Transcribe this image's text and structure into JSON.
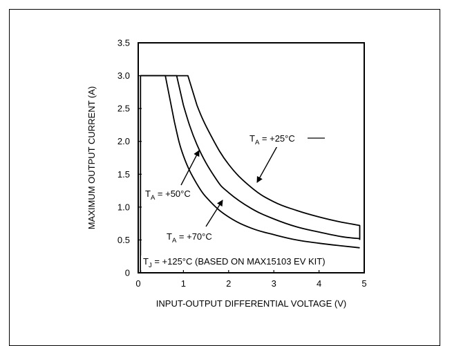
{
  "chart_data": {
    "type": "line",
    "title": "",
    "xlabel": "INPUT-OUTPUT DIFFERENTIAL VOLTAGE (V)",
    "ylabel": "MAXIMUM OUTPUT CURRENT (A)",
    "xlim": [
      0,
      5
    ],
    "ylim": [
      0,
      3.5
    ],
    "x_ticks": [
      "0",
      "1",
      "2",
      "3",
      "4",
      "5"
    ],
    "y_ticks": [
      "0",
      "0.5",
      "1.0",
      "1.5",
      "2.0",
      "2.5",
      "3.0",
      "3.5"
    ],
    "grid": false,
    "series": [
      {
        "name": "TA = +25°C",
        "x": [
          0.05,
          0.05,
          1.1,
          1.3,
          1.6,
          2.0,
          2.5,
          3.0,
          3.5,
          4.0,
          4.5,
          4.9,
          4.9
        ],
        "y": [
          0.0,
          3.0,
          3.0,
          2.55,
          2.1,
          1.65,
          1.3,
          1.08,
          0.95,
          0.85,
          0.77,
          0.72,
          0.5
        ]
      },
      {
        "name": "TA = +50°C",
        "x": [
          0.05,
          0.85,
          1.0,
          1.3,
          1.7,
          2.0,
          2.5,
          3.0,
          3.5,
          4.0,
          4.5,
          4.9
        ],
        "y": [
          3.0,
          3.0,
          2.55,
          1.95,
          1.45,
          1.22,
          0.98,
          0.82,
          0.7,
          0.62,
          0.55,
          0.52
        ]
      },
      {
        "name": "TA = +70°C",
        "x": [
          0.05,
          0.6,
          0.8,
          1.0,
          1.3,
          1.6,
          2.0,
          2.5,
          3.0,
          3.5,
          4.0,
          4.5,
          4.9
        ],
        "y": [
          3.0,
          3.0,
          2.3,
          1.78,
          1.35,
          1.08,
          0.85,
          0.68,
          0.58,
          0.5,
          0.45,
          0.41,
          0.38
        ]
      }
    ],
    "annotations": {
      "a25": {
        "main": "T",
        "sub": "A",
        "rest": " = +25°C"
      },
      "a50": {
        "main": "T",
        "sub": "A",
        "rest": " = +50°C"
      },
      "a70": {
        "main": "T",
        "sub": "A",
        "rest": " = +70°C"
      },
      "tj": {
        "main": "T",
        "sub": "J",
        "rest": " = +125°C (BASED ON MAX15103 EV KIT)"
      }
    }
  }
}
